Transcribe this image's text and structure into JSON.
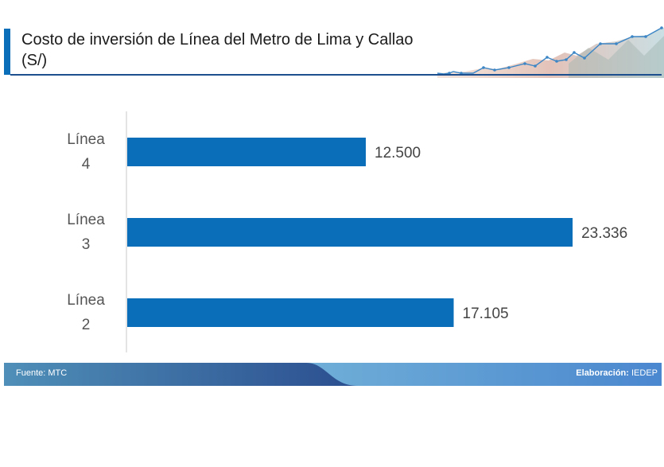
{
  "header": {
    "title": "Costo de inversión de Línea del Metro de Lima y Callao",
    "unit": "(S/)"
  },
  "chart_data": {
    "type": "bar",
    "orientation": "horizontal",
    "categories": [
      [
        "Línea",
        "4"
      ],
      [
        "Línea",
        "3"
      ],
      [
        "Línea",
        "2"
      ]
    ],
    "values": [
      12500,
      23336,
      17105
    ],
    "value_labels": [
      "12.500",
      "23.336",
      "17.105"
    ],
    "xlim": [
      0,
      25000
    ],
    "grid": false,
    "bar_color": "#0a6fb8"
  },
  "footer": {
    "source": "Fuente: MTC",
    "credit_label": "Elaboración:",
    "credit_value": "IEDEP"
  },
  "colors": {
    "accent": "#0a6fb8",
    "footer_dark": "#2b4e8f",
    "footer_light": "#7ec8dd"
  }
}
